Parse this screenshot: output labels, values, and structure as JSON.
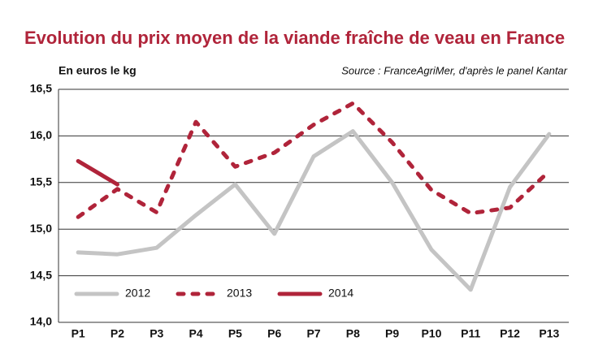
{
  "chart_data": {
    "type": "line",
    "title": "Evolution du prix moyen de la viande fraîche de veau en France",
    "y_label": "En euros le kg",
    "source": "Source : FranceAgriMer, d'après le panel Kantar",
    "categories": [
      "P1",
      "P2",
      "P3",
      "P4",
      "P5",
      "P6",
      "P7",
      "P8",
      "P9",
      "P10",
      "P11",
      "P12",
      "P13"
    ],
    "series": [
      {
        "name": "2012",
        "color": "#c4c4c4",
        "style": "solid",
        "values": [
          14.75,
          14.73,
          14.8,
          15.15,
          15.48,
          14.95,
          15.78,
          16.05,
          15.5,
          14.78,
          14.35,
          15.45,
          16.02
        ]
      },
      {
        "name": "2013",
        "color": "#b0243a",
        "style": "dotted",
        "values": [
          15.13,
          15.43,
          15.18,
          16.15,
          15.67,
          15.82,
          16.12,
          16.35,
          15.93,
          15.42,
          15.17,
          15.23,
          15.62
        ]
      },
      {
        "name": "2014",
        "color": "#b0243a",
        "style": "solid",
        "values": [
          15.73,
          15.48,
          null,
          null,
          null,
          null,
          null,
          null,
          null,
          null,
          null,
          null,
          null
        ]
      }
    ],
    "ylim": [
      14.0,
      16.5
    ],
    "yticks": [
      {
        "value": 14.0,
        "label": "14,0"
      },
      {
        "value": 14.5,
        "label": "14,5"
      },
      {
        "value": 15.0,
        "label": "15,0"
      },
      {
        "value": 15.5,
        "label": "15,5"
      },
      {
        "value": 16.0,
        "label": "16,0"
      },
      {
        "value": 16.5,
        "label": "16,5"
      }
    ],
    "grid": true,
    "legend": "bottom-left"
  }
}
